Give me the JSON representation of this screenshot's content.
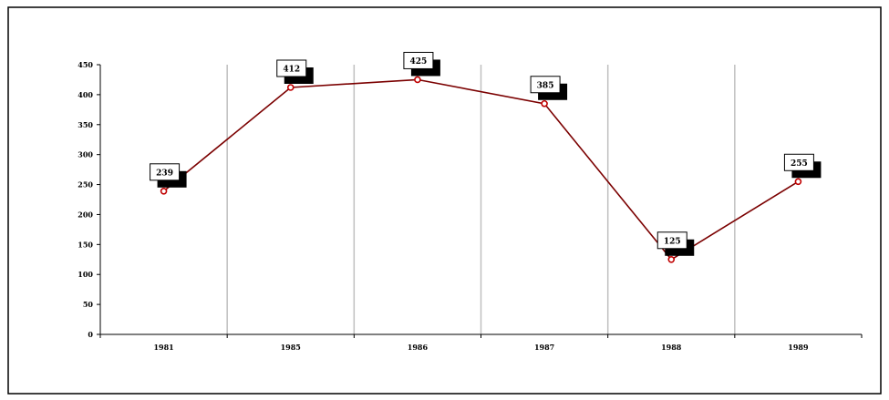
{
  "chart_data": {
    "type": "line",
    "categories": [
      "1981",
      "1985",
      "1986",
      "1987",
      "1988",
      "1989"
    ],
    "series": [
      {
        "values": [
          239,
          412,
          425,
          385,
          125,
          255
        ],
        "color": "#7b0000",
        "marker_color": "#c00000"
      }
    ],
    "ylim": [
      0,
      450
    ],
    "yticks": [
      "0",
      "50",
      "100",
      "150",
      "200",
      "250",
      "300",
      "350",
      "400",
      "450"
    ],
    "grid": "vertical",
    "legend": "none",
    "title": "",
    "xlabel": "",
    "ylabel": "",
    "data_labels": [
      "239",
      "412",
      "425",
      "385",
      "125",
      "255"
    ]
  }
}
